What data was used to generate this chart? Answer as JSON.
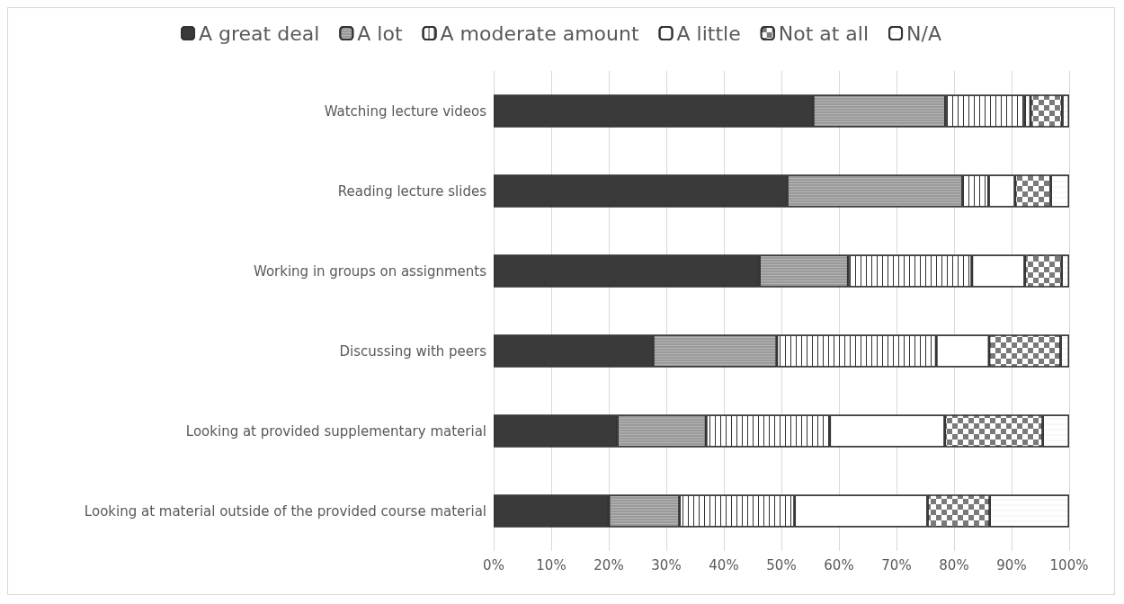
{
  "chart_data": {
    "type": "bar",
    "orientation": "horizontal",
    "stacked": true,
    "categories": [
      "Watching lecture videos",
      "Reading lecture slides",
      "Working in groups on assignments",
      "Discussing with peers",
      "Looking at provided supplementary material",
      "Looking at material outside of the provided course material"
    ],
    "series": [
      {
        "name": "A great deal",
        "color": "#3a3a3a",
        "values": [
          55.5,
          51,
          46.2,
          27.7,
          21.5,
          20
        ]
      },
      {
        "name": "A lot",
        "color": "#9a9a9a",
        "values": [
          23,
          30.5,
          15.4,
          21.5,
          15.4,
          12.3
        ]
      },
      {
        "name": "A moderate amount",
        "color": "#ffffff",
        "values": [
          13.8,
          4.5,
          21.5,
          27.7,
          21.5,
          20
        ]
      },
      {
        "name": "A little",
        "color": "#ffffff",
        "values": [
          1,
          4.6,
          9.2,
          9.2,
          20,
          23.1
        ]
      },
      {
        "name": "Not at all",
        "color": "#7a7a7a",
        "values": [
          5.5,
          6.2,
          6.4,
          12.4,
          17,
          10.8
        ]
      },
      {
        "name": "N/A",
        "color": "#ffffff",
        "values": [
          1.2,
          3.2,
          1.3,
          1.5,
          4.6,
          13.8
        ]
      }
    ],
    "xlim": [
      0,
      100
    ],
    "xticks": [
      {
        "value": 0,
        "label": "0%"
      },
      {
        "value": 10,
        "label": "10%"
      },
      {
        "value": 20,
        "label": "20%"
      },
      {
        "value": 30,
        "label": "30%"
      },
      {
        "value": 40,
        "label": "40%"
      },
      {
        "value": 50,
        "label": "50%"
      },
      {
        "value": 60,
        "label": "60%"
      },
      {
        "value": 70,
        "label": "70%"
      },
      {
        "value": 80,
        "label": "80%"
      },
      {
        "value": 90,
        "label": "90%"
      },
      {
        "value": 100,
        "label": "100%"
      }
    ],
    "grid": "x",
    "legend": "top"
  }
}
